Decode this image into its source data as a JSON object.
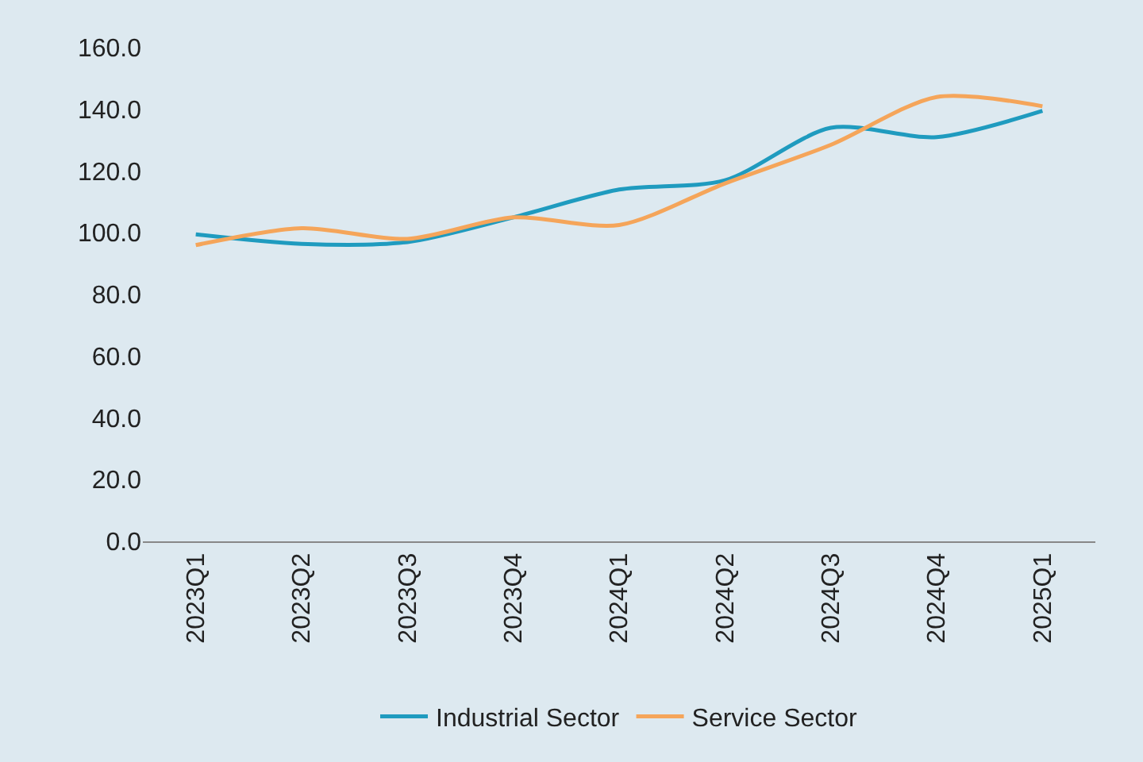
{
  "chart_data": {
    "type": "line",
    "categories": [
      "2023Q1",
      "2023Q2",
      "2023Q3",
      "2023Q4",
      "2024Q1",
      "2024Q2",
      "2024Q3",
      "2024Q4",
      "2025Q1"
    ],
    "series": [
      {
        "name": "Industrial Sector",
        "color": "#1f9bbf",
        "values": [
          99.5,
          96.4,
          97,
          105,
          114,
          117,
          134,
          131,
          139.5
        ]
      },
      {
        "name": "Service Sector",
        "color": "#f5a55a",
        "values": [
          96,
          101.5,
          98,
          105,
          102.5,
          116,
          128.5,
          144,
          141
        ]
      }
    ],
    "ylim": [
      0,
      160
    ],
    "yticks": [
      {
        "value": 0,
        "label": "0.0"
      },
      {
        "value": 20,
        "label": "20.0"
      },
      {
        "value": 40,
        "label": "40.0"
      },
      {
        "value": 60,
        "label": "60.0"
      },
      {
        "value": 80,
        "label": "80.0"
      },
      {
        "value": 100,
        "label": "100.0"
      },
      {
        "value": 120,
        "label": "120.0"
      },
      {
        "value": 140,
        "label": "140.0"
      },
      {
        "value": 160,
        "label": "160.0"
      }
    ],
    "grid": false,
    "legend": "bottom",
    "marker": "none",
    "line_style": "solid"
  }
}
